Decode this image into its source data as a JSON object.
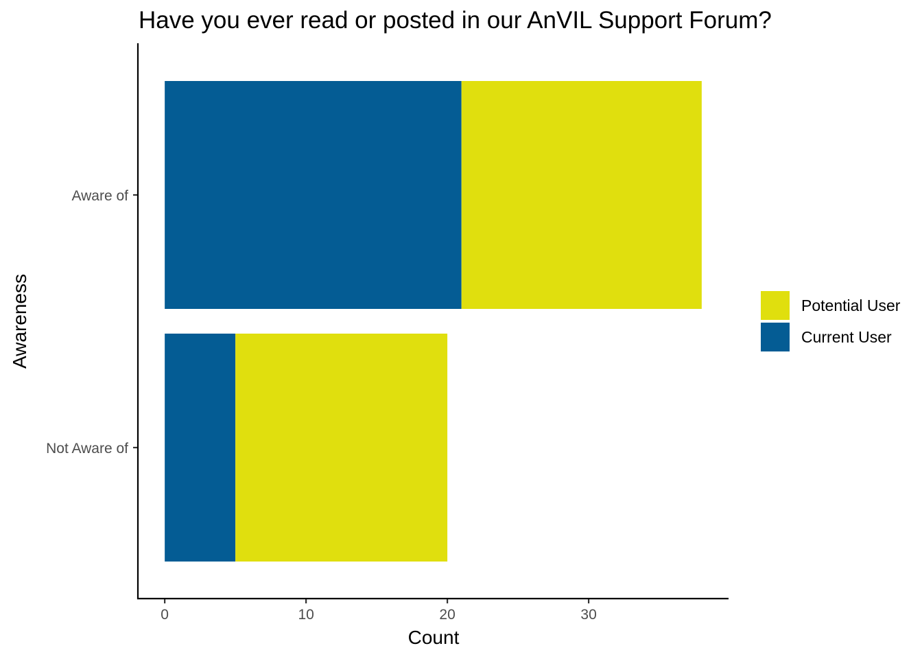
{
  "chart_data": {
    "type": "bar",
    "orientation": "horizontal",
    "stacked": true,
    "title": "Have you ever read or posted in our AnVIL Support Forum?",
    "xlabel": "Count",
    "ylabel": "Awareness",
    "categories": [
      "Aware of",
      "Not Aware of"
    ],
    "series": [
      {
        "name": "Current User",
        "values": [
          21,
          5
        ],
        "color": "#045c94"
      },
      {
        "name": "Potential User",
        "values": [
          17,
          15
        ],
        "color": "#e0df0e"
      }
    ],
    "xticks": [
      "0",
      "10",
      "20",
      "30"
    ],
    "xlim": [
      -1.9,
      39.9
    ],
    "legend": {
      "position": "right",
      "items": [
        "Potential User",
        "Current User"
      ]
    },
    "grid": false
  }
}
